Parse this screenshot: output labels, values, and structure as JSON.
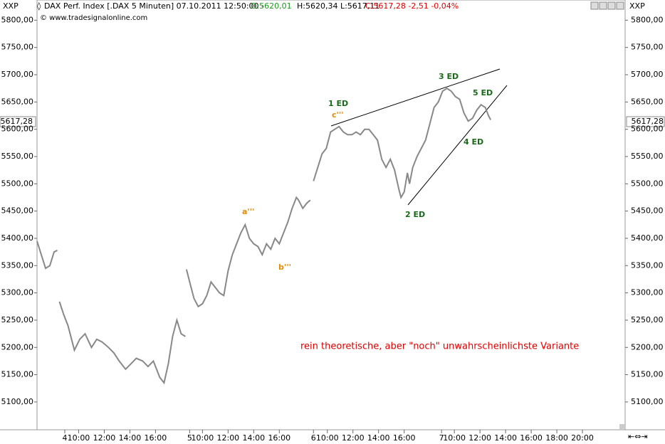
{
  "chart_data": {
    "type": "line",
    "header": {
      "symbol_left": "XXP",
      "symbol_right": "XXP",
      "instrument": "DAX Perf. Index [.DAX  5 Minuten] 07.10.2011 12:50:00 -",
      "open": "O:5620,01",
      "high_low": "H:5620,34 L:5617,11",
      "close": "C:5617,28 -2,51 -0,04%",
      "source": "© www.tradesignalonline.com"
    },
    "last_price": "5617,28",
    "annotations": [
      "1 ED",
      "c'''",
      "3 ED",
      "5 ED",
      "4 ED",
      "2 ED",
      "a'''",
      "b'''",
      "rein theoretische, aber \"noch\" unwahrscheinlichste Variante"
    ],
    "xlim": [
      0,
      551
    ],
    "xticks": [
      {
        "value": 26,
        "label": "4"
      },
      {
        "value": 39,
        "label": "10:00"
      },
      {
        "value": 63,
        "label": "12:00"
      },
      {
        "value": 87,
        "label": "14:00"
      },
      {
        "value": 111,
        "label": "16:00"
      },
      {
        "value": 143,
        "label": "5"
      },
      {
        "value": 155,
        "label": "10:00"
      },
      {
        "value": 179,
        "label": "12:00"
      },
      {
        "value": 203,
        "label": "14:00"
      },
      {
        "value": 227,
        "label": "16:00"
      },
      {
        "value": 259,
        "label": "6"
      },
      {
        "value": 272,
        "label": "10:00"
      },
      {
        "value": 296,
        "label": "12:00"
      },
      {
        "value": 320,
        "label": "14:00"
      },
      {
        "value": 344,
        "label": "16:00"
      },
      {
        "value": 379,
        "label": "7"
      },
      {
        "value": 391,
        "label": "10:00"
      },
      {
        "value": 415,
        "label": "12:00"
      },
      {
        "value": 439,
        "label": "14:00"
      },
      {
        "value": 463,
        "label": "16:00"
      },
      {
        "value": 487,
        "label": "18:00"
      },
      {
        "value": 511,
        "label": "20:00"
      }
    ],
    "ylim": [
      5049,
      5837
    ],
    "yticks": [
      {
        "value": 5100,
        "label": "5100,00"
      },
      {
        "value": 5150,
        "label": "5150,00"
      },
      {
        "value": 5200,
        "label": "5200,00"
      },
      {
        "value": 5250,
        "label": "5250,00"
      },
      {
        "value": 5300,
        "label": "5300,00"
      },
      {
        "value": 5350,
        "label": "5350,00"
      },
      {
        "value": 5400,
        "label": "5400,00"
      },
      {
        "value": 5450,
        "label": "5450,00"
      },
      {
        "value": 5500,
        "label": "5500,00"
      },
      {
        "value": 5550,
        "label": "5550,00"
      },
      {
        "value": 5600,
        "label": "5600,00"
      },
      {
        "value": 5650,
        "label": "5650,00"
      },
      {
        "value": 5700,
        "label": "5700,00"
      },
      {
        "value": 5750,
        "label": "5750,00"
      },
      {
        "value": 5800,
        "label": "5800,00"
      }
    ],
    "series": [
      {
        "color": "#888888",
        "x": [
          0,
          4,
          8,
          12,
          16,
          19,
          20,
          21,
          25,
          29,
          35,
          40,
          45,
          51,
          56,
          61,
          67,
          72,
          77,
          83,
          88,
          93,
          99,
          104,
          109,
          115,
          119,
          123,
          127,
          131,
          135,
          139,
          139.5,
          140,
          143,
          147,
          151,
          155,
          159,
          163,
          167,
          171,
          175,
          179,
          183,
          187,
          191,
          195,
          199,
          203,
          207,
          211,
          215,
          219,
          223,
          227,
          231,
          235,
          239,
          243,
          245,
          249,
          253,
          256,
          257.5,
          259,
          263,
          267,
          271,
          275,
          279,
          283,
          287,
          291,
          295,
          299,
          303,
          307,
          311,
          315,
          319,
          323,
          327,
          331,
          335,
          339,
          341,
          344,
          347,
          349,
          352,
          356,
          360,
          364,
          368,
          372,
          376,
          380,
          384,
          388,
          392,
          396,
          400,
          404,
          408,
          412,
          416,
          420,
          423,
          425
        ],
        "values": [
          5395,
          5370,
          5345,
          5350,
          5375,
          5378,
          null,
          5284,
          5260,
          5240,
          5195,
          5215,
          5225,
          5200,
          5215,
          5210,
          5200,
          5190,
          5175,
          5160,
          5170,
          5180,
          5175,
          5165,
          5175,
          5145,
          5135,
          5170,
          5220,
          5250,
          5225,
          5220,
          null,
          5343,
          5320,
          5290,
          5275,
          5280,
          5295,
          5320,
          5310,
          5300,
          5295,
          5340,
          5370,
          5390,
          5410,
          5425,
          5400,
          5390,
          5385,
          5370,
          5390,
          5380,
          5400,
          5390,
          5410,
          5430,
          5455,
          5475,
          5470,
          5455,
          5465,
          5470,
          null,
          5505,
          5530,
          5555,
          5565,
          5595,
          5600,
          5605,
          5595,
          5590,
          5590,
          5595,
          5590,
          5600,
          5600,
          5590,
          5580,
          5545,
          5530,
          5545,
          5525,
          5490,
          5475,
          5485,
          5520,
          5500,
          5530,
          5550,
          5565,
          5580,
          5610,
          5640,
          5650,
          5670,
          5675,
          5670,
          5660,
          5655,
          5630,
          5615,
          5620,
          5635,
          5645,
          5640,
          5625,
          5617.28
        ]
      }
    ]
  }
}
